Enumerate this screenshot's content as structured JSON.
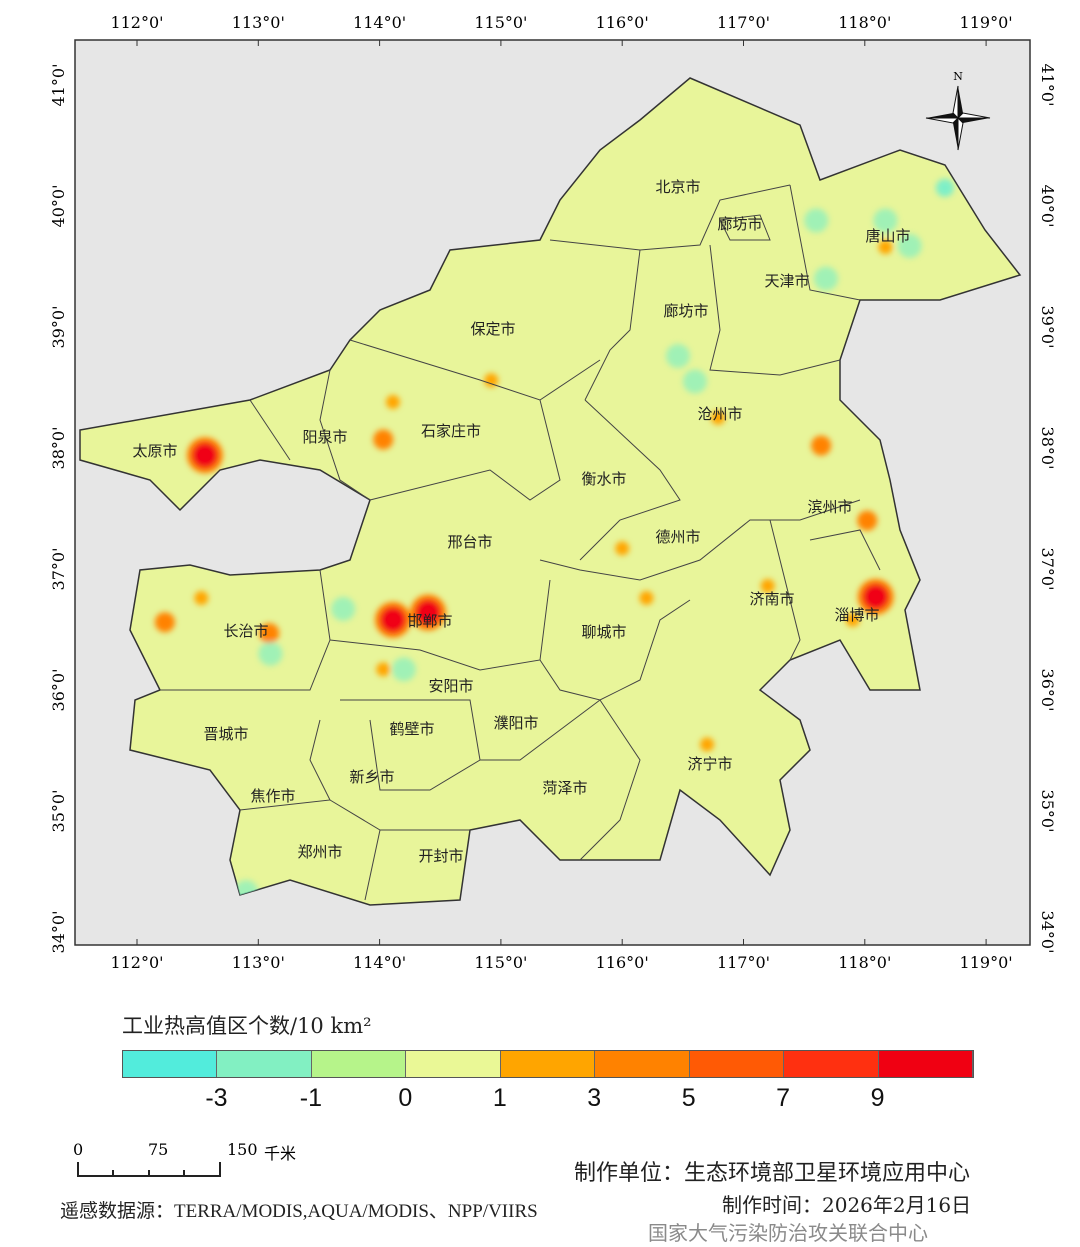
{
  "map": {
    "lon_ticks": [
      "112°0'",
      "113°0'",
      "114°0'",
      "115°0'",
      "116°0'",
      "117°0'",
      "118°0'",
      "119°0'"
    ],
    "lat_ticks": [
      "41°0'",
      "40°0'",
      "39°0'",
      "38°0'",
      "37°0'",
      "36°0'",
      "35°0'",
      "34°0'"
    ],
    "north_label": "N",
    "colors": {
      "background": "#e6e6e6",
      "land": "#e8f59a",
      "border": "#333333"
    },
    "cities": [
      "北京市",
      "廊坊市",
      "唐山市",
      "天津市",
      "廊坊市",
      "保定市",
      "沧州市",
      "太原市",
      "阳泉市",
      "石家庄市",
      "衡水市",
      "滨州市",
      "邢台市",
      "德州市",
      "长治市",
      "邯郸市",
      "济南市",
      "淄博市",
      "聊城市",
      "安阳市",
      "晋城市",
      "鹤壁市",
      "濮阳市",
      "新乡市",
      "济宁市",
      "焦作市",
      "菏泽市",
      "郑州市",
      "开封市"
    ],
    "hotspots": [
      {
        "lon": 112.56,
        "lat": 37.94,
        "value": 9
      },
      {
        "lon": 114.11,
        "lat": 36.58,
        "value": 9
      },
      {
        "lon": 114.4,
        "lat": 36.64,
        "value": 9
      },
      {
        "lon": 118.09,
        "lat": 36.77,
        "value": 9
      },
      {
        "lon": 117.64,
        "lat": 38.02,
        "value": 5
      },
      {
        "lon": 114.03,
        "lat": 38.07,
        "value": 5
      },
      {
        "lon": 113.09,
        "lat": 36.47,
        "value": 5
      },
      {
        "lon": 112.23,
        "lat": 36.56,
        "value": 5
      },
      {
        "lon": 118.02,
        "lat": 37.4,
        "value": 5
      },
      {
        "lon": 116.7,
        "lat": 35.55,
        "value": 3
      },
      {
        "lon": 114.92,
        "lat": 38.56,
        "value": 3
      },
      {
        "lon": 114.11,
        "lat": 38.38,
        "value": 3
      },
      {
        "lon": 117.9,
        "lat": 36.58,
        "value": 3
      },
      {
        "lon": 116.2,
        "lat": 36.76,
        "value": 3
      },
      {
        "lon": 116.0,
        "lat": 37.17,
        "value": 3
      },
      {
        "lon": 118.17,
        "lat": 39.66,
        "value": 3
      },
      {
        "lon": 112.53,
        "lat": 36.76,
        "value": 3
      },
      {
        "lon": 114.03,
        "lat": 36.17,
        "value": 3
      },
      {
        "lon": 116.79,
        "lat": 38.25,
        "value": 3
      },
      {
        "lon": 117.2,
        "lat": 36.86,
        "value": 3
      },
      {
        "lon": 118.17,
        "lat": 39.88,
        "value": -1
      },
      {
        "lon": 118.37,
        "lat": 39.67,
        "value": -1
      },
      {
        "lon": 117.68,
        "lat": 39.4,
        "value": -1
      },
      {
        "lon": 117.6,
        "lat": 39.88,
        "value": -1
      },
      {
        "lon": 114.2,
        "lat": 36.17,
        "value": -1
      },
      {
        "lon": 113.7,
        "lat": 36.67,
        "value": -1
      },
      {
        "lon": 118.66,
        "lat": 40.15,
        "value": -3
      },
      {
        "lon": 116.46,
        "lat": 38.76,
        "value": -1
      },
      {
        "lon": 116.6,
        "lat": 38.55,
        "value": -1
      },
      {
        "lon": 113.1,
        "lat": 36.3,
        "value": -1
      },
      {
        "lon": 112.9,
        "lat": 34.33,
        "value": -1
      }
    ]
  },
  "legend": {
    "title": "工业热高值区个数/10 km²",
    "colors": [
      "#52ecdc",
      "#82f0c2",
      "#b6f48a",
      "#eaf896",
      "#ffa500",
      "#ff8200",
      "#ff5a05",
      "#ff3010",
      "#f00012"
    ],
    "ticks": [
      "-3",
      "-1",
      "0",
      "1",
      "3",
      "5",
      "7",
      "9"
    ]
  },
  "scale_bar": {
    "ticks": [
      "0",
      "75",
      "150"
    ],
    "unit": "千米"
  },
  "credits": {
    "producer": "制作单位：生态环境部卫星环境应用中心",
    "data_source": "遥感数据源：TERRA/MODIS,AQUA/MODIS、NPP/VIIRS",
    "date": "制作时间：2026年2月16日",
    "watermark": "国家大气污染防治攻关联合中心"
  }
}
